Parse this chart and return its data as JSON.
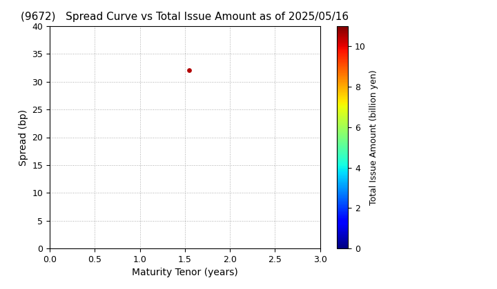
{
  "title": "(9672)   Spread Curve vs Total Issue Amount as of 2025/05/16",
  "xlabel": "Maturity Tenor (years)",
  "ylabel": "Spread (bp)",
  "colorbar_label": "Total Issue Amount (billion yen)",
  "xlim": [
    0.0,
    3.0
  ],
  "ylim": [
    0,
    40
  ],
  "xticks": [
    0.0,
    0.5,
    1.0,
    1.5,
    2.0,
    2.5,
    3.0
  ],
  "yticks": [
    0,
    5,
    10,
    15,
    20,
    25,
    30,
    35,
    40
  ],
  "colorbar_ticks": [
    0,
    2,
    4,
    6,
    8,
    10
  ],
  "colorbar_vmin": 0,
  "colorbar_vmax": 11,
  "scatter_x": [
    1.55
  ],
  "scatter_y": [
    32
  ],
  "scatter_color": [
    10.5
  ],
  "scatter_size": [
    15
  ],
  "grid_color": "#aaaaaa",
  "background_color": "#ffffff",
  "title_fontsize": 11,
  "title_fontweight": "normal",
  "axis_label_fontsize": 10,
  "tick_fontsize": 9,
  "colorbar_label_fontsize": 9
}
